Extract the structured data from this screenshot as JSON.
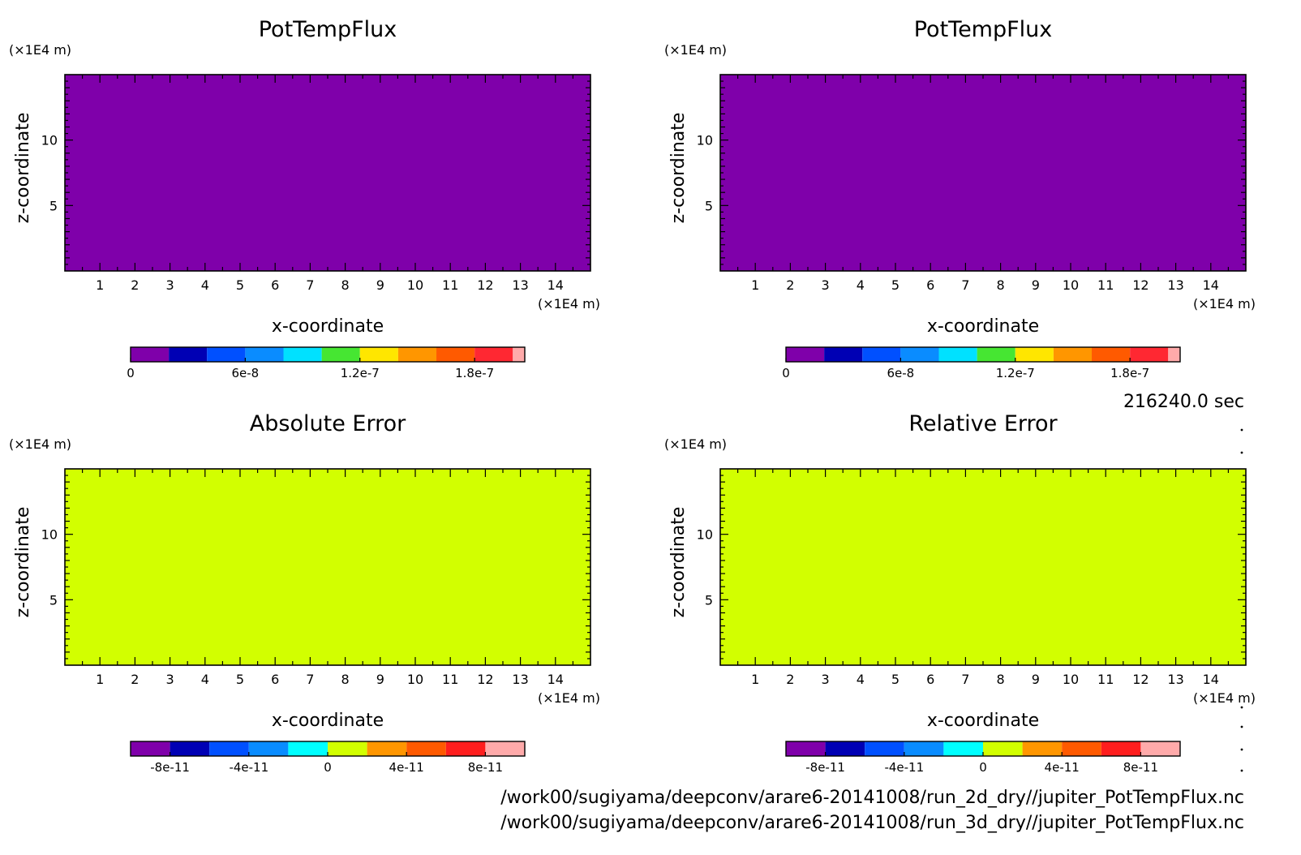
{
  "time_label": "216240.0 sec",
  "file_paths": [
    "/work00/sugiyama/deepconv/arare6-20141008/run_2d_dry//jupiter_PotTempFlux.nc",
    "/work00/sugiyama/deepconv/arare6-20141008/run_3d_dry//jupiter_PotTempFlux.nc"
  ],
  "colorbar_sets": {
    "flux": {
      "colors": [
        "#7f00aa",
        "#0000b4",
        "#0050ff",
        "#0a8cff",
        "#00e1ff",
        "#46e632",
        "#ffe600",
        "#ff9600",
        "#ff5a00",
        "#ff2832",
        "#ffaaaa"
      ],
      "tick_positions": [
        0,
        6e-08,
        1.2e-07,
        1.8e-07
      ],
      "tick_labels": [
        "0",
        "6e-8",
        "1.2e-7",
        "1.8e-7"
      ],
      "range": [
        0,
        2.0625e-07
      ]
    },
    "error": {
      "colors": [
        "#7f00aa",
        "#0000b4",
        "#0050ff",
        "#0a8cff",
        "#00ffff",
        "#d2ff00",
        "#ff9600",
        "#ff5a00",
        "#ff1e1e",
        "#ffaaaa"
      ],
      "tick_positions": [
        -8e-11,
        -4e-11,
        0,
        4e-11,
        8e-11
      ],
      "tick_labels": [
        "-8e-11",
        "-4e-11",
        "0",
        "4e-11",
        "8e-11"
      ],
      "range": [
        -1e-10,
        1e-10
      ]
    }
  },
  "chart_data": [
    {
      "type": "heatmap",
      "title": "PotTempFlux",
      "xlabel": "x-coordinate",
      "ylabel": "z-coordinate",
      "x_unit": "(×1E4 m)",
      "y_unit": "(×1E4 m)",
      "xlim": [
        0,
        15
      ],
      "ylim": [
        0,
        15
      ],
      "x_ticks": [
        1,
        2,
        3,
        4,
        5,
        6,
        7,
        8,
        9,
        10,
        11,
        12,
        13,
        14
      ],
      "y_ticks": [
        5,
        10
      ],
      "field_value": 0,
      "fill_color": "#7f00aa",
      "colorbar": "flux"
    },
    {
      "type": "heatmap",
      "title": "PotTempFlux",
      "xlabel": "x-coordinate",
      "ylabel": "z-coordinate",
      "x_unit": "(×1E4 m)",
      "y_unit": "(×1E4 m)",
      "xlim": [
        0,
        15
      ],
      "ylim": [
        0,
        15
      ],
      "x_ticks": [
        1,
        2,
        3,
        4,
        5,
        6,
        7,
        8,
        9,
        10,
        11,
        12,
        13,
        14
      ],
      "y_ticks": [
        5,
        10
      ],
      "field_value": 0,
      "fill_color": "#7f00aa",
      "colorbar": "flux"
    },
    {
      "type": "heatmap",
      "title": "Absolute Error",
      "xlabel": "x-coordinate",
      "ylabel": "z-coordinate",
      "x_unit": "(×1E4 m)",
      "y_unit": "(×1E4 m)",
      "xlim": [
        0,
        15
      ],
      "ylim": [
        0,
        15
      ],
      "x_ticks": [
        1,
        2,
        3,
        4,
        5,
        6,
        7,
        8,
        9,
        10,
        11,
        12,
        13,
        14
      ],
      "y_ticks": [
        5,
        10
      ],
      "field_value": 0,
      "fill_color": "#d2ff00",
      "colorbar": "error"
    },
    {
      "type": "heatmap",
      "title": "Relative Error",
      "xlabel": "x-coordinate",
      "ylabel": "z-coordinate",
      "x_unit": "(×1E4 m)",
      "y_unit": "(×1E4 m)",
      "xlim": [
        0,
        15
      ],
      "ylim": [
        0,
        15
      ],
      "x_ticks": [
        1,
        2,
        3,
        4,
        5,
        6,
        7,
        8,
        9,
        10,
        11,
        12,
        13,
        14
      ],
      "y_ticks": [
        5,
        10
      ],
      "field_value": 0,
      "fill_color": "#d2ff00",
      "colorbar": "error"
    }
  ]
}
